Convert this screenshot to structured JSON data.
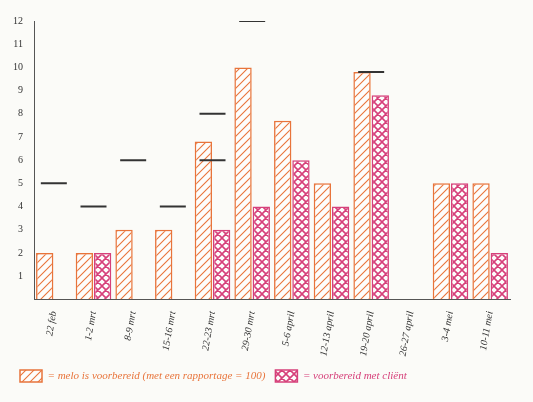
{
  "chart_data": {
    "type": "bar",
    "categories": [
      "22 feb",
      "1-2 mrt",
      "8-9 mrt",
      "15-16 mrt",
      "22-23 mrt",
      "29-30 mrt",
      "5-6 april",
      "12-13 april",
      "19-20 april",
      "26-27 april",
      "3-4 mei",
      "10-11 mei"
    ],
    "series": [
      {
        "name": "= melo is voorbereid (met een rapportage = 100)",
        "color": "#e8743b",
        "values": [
          2,
          2,
          3,
          3,
          6.8,
          10,
          7.7,
          5,
          9.8,
          0,
          5,
          5
        ]
      },
      {
        "name": "= voorbereid met cliënt",
        "color": "#d6407a",
        "values": [
          0,
          2,
          0,
          0,
          3,
          4,
          6,
          4,
          8.8,
          0,
          5,
          2
        ]
      },
      {
        "type": "line",
        "marker": "line",
        "line_style": "none",
        "color": "#333333",
        "values": [
          5,
          4,
          6,
          4,
          8,
          12,
          null,
          null,
          9.8,
          null,
          null,
          null
        ]
      },
      {
        "type": "line",
        "marker": "line",
        "line_style": "none",
        "color": "#333333",
        "values": [
          null,
          null,
          null,
          null,
          6,
          null,
          null,
          null,
          null,
          null,
          null,
          null
        ]
      }
    ],
    "ylim": [
      0,
      12
    ],
    "yticks": [
      1,
      2,
      3,
      4,
      5,
      6,
      7,
      8,
      9,
      10,
      11,
      12
    ],
    "grid": false,
    "legend": "bottom"
  }
}
